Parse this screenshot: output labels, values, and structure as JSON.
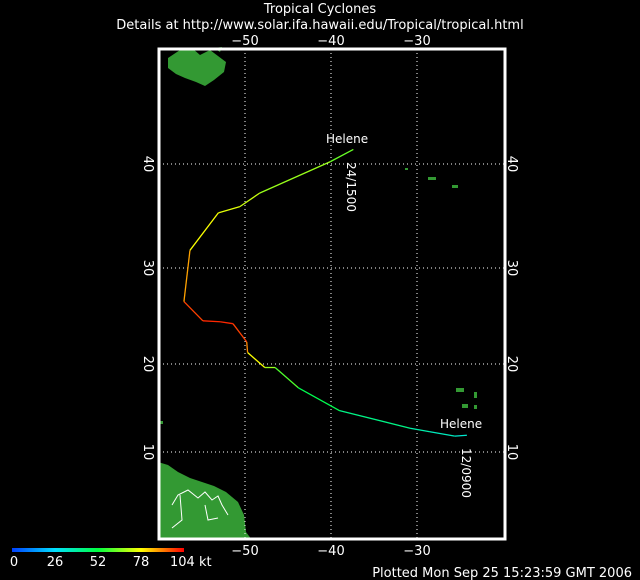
{
  "title": "Tropical Cyclones",
  "subtitle": "Details at http://www.solar.ifa.hawaii.edu/Tropical/tropical.html",
  "footer": "Plotted Mon Sep 25 15:23:59 GMT 2006",
  "axes": {
    "lon_ticks": [
      {
        "value": -50,
        "label": "−50"
      },
      {
        "value": -40,
        "label": "−40"
      },
      {
        "value": -30,
        "label": "−30"
      }
    ],
    "lat_ticks": [
      {
        "value": 10,
        "label": "10"
      },
      {
        "value": 20,
        "label": "20"
      },
      {
        "value": 30,
        "label": "30"
      },
      {
        "value": 40,
        "label": "40"
      }
    ]
  },
  "legend": {
    "labels": [
      "0",
      "26",
      "52",
      "78",
      "104 kt"
    ],
    "colors": [
      "#0040ff",
      "#00e0ff",
      "#00ff40",
      "#ffff00",
      "#ff0000"
    ]
  },
  "colors": {
    "land": "#339933",
    "frame": "#ffffff",
    "grid": "#ffffff"
  },
  "storm": {
    "name": "Helene",
    "start_label": "12/0900",
    "end_label": "24/1500",
    "track": [
      {
        "lon": -24.2,
        "lat": 11.9,
        "kt": 30
      },
      {
        "lon": -25.6,
        "lat": 11.8,
        "kt": 35
      },
      {
        "lon": -28.5,
        "lat": 12.3,
        "kt": 35
      },
      {
        "lon": -30.8,
        "lat": 12.7,
        "kt": 40
      },
      {
        "lon": -39.0,
        "lat": 14.7,
        "kt": 45
      },
      {
        "lon": -43.8,
        "lat": 17.3,
        "kt": 55
      },
      {
        "lon": -46.5,
        "lat": 19.6,
        "kt": 65
      },
      {
        "lon": -47.7,
        "lat": 19.6,
        "kt": 70
      },
      {
        "lon": -49.7,
        "lat": 21.2,
        "kt": 85
      },
      {
        "lon": -49.8,
        "lat": 22.3,
        "kt": 95
      },
      {
        "lon": -51.4,
        "lat": 24.2,
        "kt": 100
      },
      {
        "lon": -52.9,
        "lat": 24.4,
        "kt": 100
      },
      {
        "lon": -54.9,
        "lat": 24.5,
        "kt": 100
      },
      {
        "lon": -57.1,
        "lat": 26.5,
        "kt": 95
      },
      {
        "lon": -56.4,
        "lat": 31.7,
        "kt": 80
      },
      {
        "lon": -53.1,
        "lat": 35.3,
        "kt": 75
      },
      {
        "lon": -50.6,
        "lat": 35.9,
        "kt": 75
      },
      {
        "lon": -48.3,
        "lat": 37.2,
        "kt": 70
      },
      {
        "lon": -40.1,
        "lat": 40.2,
        "kt": 65
      },
      {
        "lon": -37.4,
        "lat": 41.3,
        "kt": 60
      }
    ]
  }
}
